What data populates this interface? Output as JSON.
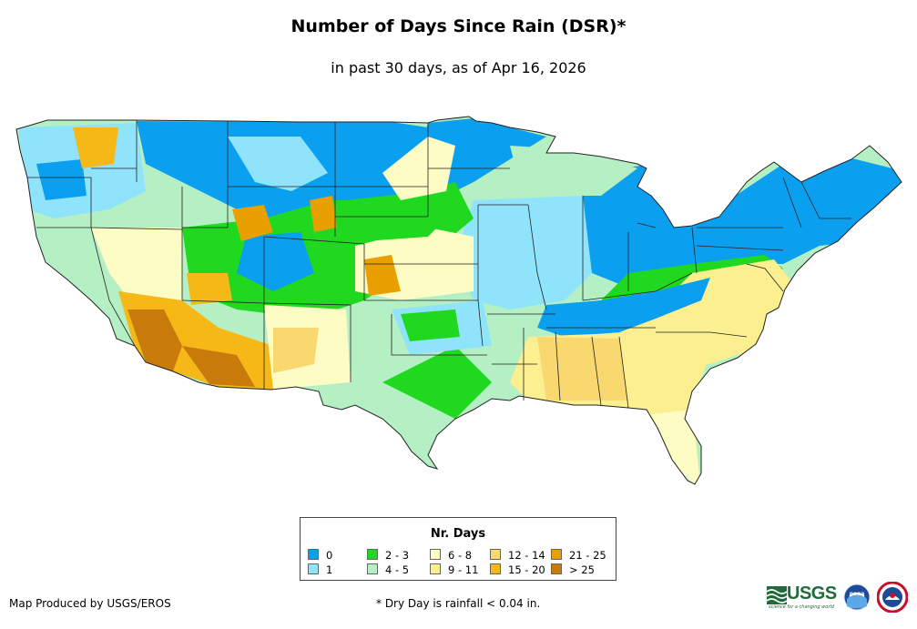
{
  "title": "Number of Days Since Rain (DSR)*",
  "subtitle": "in past 30 days, as of Apr 16, 2026",
  "legend": {
    "title": "Nr. Days",
    "items": [
      {
        "label": "0",
        "color": "#0b9ff0"
      },
      {
        "label": "1",
        "color": "#8fe3fb"
      },
      {
        "label": "2 - 3",
        "color": "#1fd81f"
      },
      {
        "label": "4 - 5",
        "color": "#b5f0c4"
      },
      {
        "label": "6 - 8",
        "color": "#fcfcc4"
      },
      {
        "label": "9 - 11",
        "color": "#fbef8f"
      },
      {
        "label": "12 - 14",
        "color": "#f9d870"
      },
      {
        "label": "15 - 20",
        "color": "#f5b816"
      },
      {
        "label": "21 - 25",
        "color": "#e8a000"
      },
      {
        "label": "> 25",
        "color": "#c87a0a"
      }
    ]
  },
  "footer": {
    "producer": "Map Produced by USGS/EROS",
    "note": "* Dry Day is rainfall < 0.04 in."
  },
  "logos": {
    "usgs": "USGS",
    "usgs_tagline": "science for a changing world",
    "noaa": "noaa",
    "nws": "nws-logo"
  }
}
